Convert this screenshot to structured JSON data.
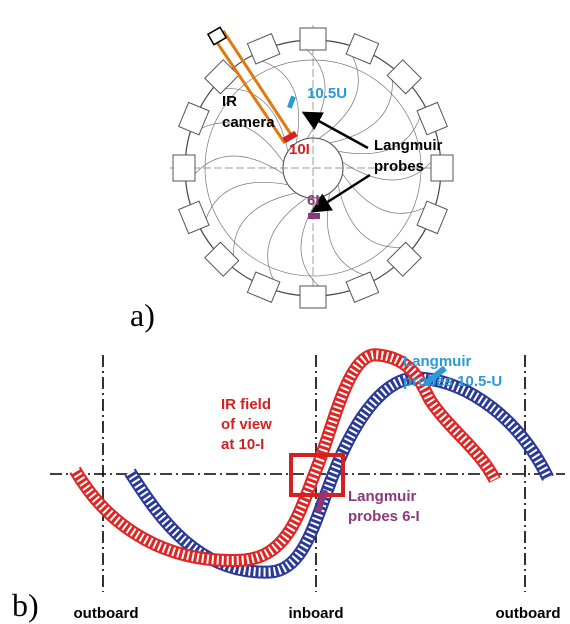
{
  "panel_a": {
    "label": "a)",
    "ir_camera": [
      "IR",
      "camera"
    ],
    "probe_10_5u": "10.5U",
    "probe_10i": "10I",
    "langmuir_probes": [
      "Langmuir",
      "probes"
    ],
    "probe_6i": "6I"
  },
  "panel_b": {
    "label": "b)",
    "langmuir_10_5u": [
      "Langmuir",
      "probes 10.5-U"
    ],
    "ir_field": [
      "IR field",
      "of view",
      "at 10-I"
    ],
    "langmuir_6i": [
      "Langmuir",
      "probes 6-I"
    ],
    "x_labels": [
      "outboard",
      "inboard",
      "outboard"
    ]
  }
}
